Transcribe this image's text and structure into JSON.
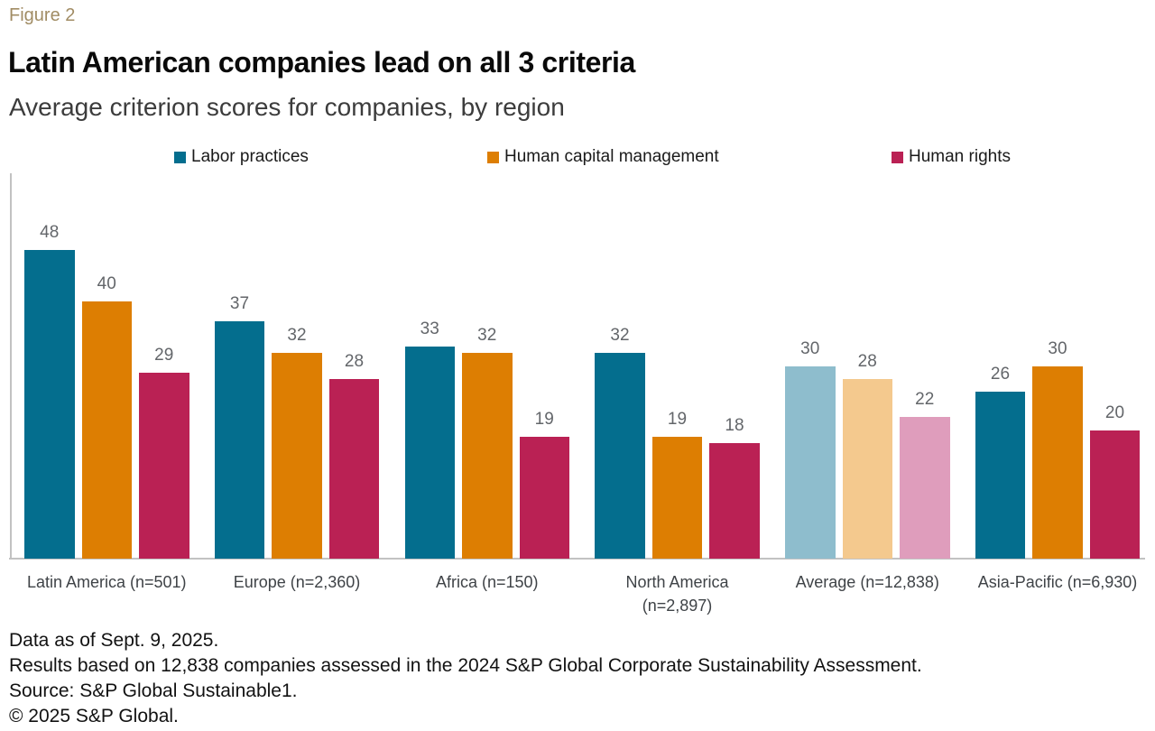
{
  "header": {
    "figure_label": "Figure 2",
    "title": "Latin American companies lead on all 3 criteria",
    "subtitle": "Average criterion scores for companies, by region"
  },
  "palette": {
    "figure_label": "#A18C64",
    "value_label": "#63666A",
    "axis_line": "#C2C2C2",
    "category_label": "#3F4347"
  },
  "chart_data": {
    "type": "bar",
    "title": "Latin American companies lead on all 3 criteria",
    "subtitle": "Average criterion scores for companies, by region",
    "grid": false,
    "legend_position": "top",
    "ylim": [
      0,
      60
    ],
    "categories": [
      "Latin America (n=501)",
      "Europe (n=2,360)",
      "Africa (n=150)",
      "North America (n=2,897)",
      "Average (n=12,838)",
      "Asia-Pacific (n=6,930)"
    ],
    "category_label_lines": [
      [
        "Latin America (n=501)"
      ],
      [
        "Europe (n=2,360)"
      ],
      [
        "Africa (n=150)"
      ],
      [
        "North America",
        "(n=2,897)"
      ],
      [
        "Average (n=12,838)"
      ],
      [
        "Asia-Pacific (n=6,930)"
      ]
    ],
    "muted_category_index": 4,
    "series": [
      {
        "name": "Labor practices",
        "color": "#046E8E",
        "muted_color": "#8EBDCD",
        "values": [
          48,
          37,
          33,
          32,
          30,
          26
        ]
      },
      {
        "name": "Human capital management",
        "color": "#DD7E02",
        "muted_color": "#F4C98E",
        "values": [
          40,
          32,
          32,
          19,
          28,
          30
        ]
      },
      {
        "name": "Human rights",
        "color": "#BA2154",
        "muted_color": "#DF9DBC",
        "values": [
          29,
          28,
          19,
          18,
          22,
          20
        ]
      }
    ],
    "legend_x_positions": [
      193,
      540,
      988
    ]
  },
  "footnotes": [
    "Data as of Sept. 9, 2025.",
    "Results based on 12,838 companies assessed in the 2024 S&P Global Corporate Sustainability Assessment.",
    "Source: S&P Global Sustainable1.",
    "© 2025 S&P Global."
  ]
}
